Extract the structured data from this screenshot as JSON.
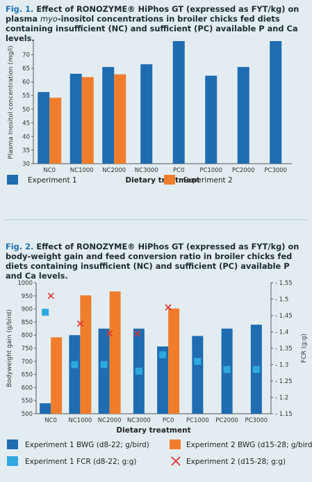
{
  "fig1": {
    "label": "Fig. 1.",
    "title_part1": " Effect of RONOZYME® HiPhos GT (expressed as FYT/kg) on plasma ",
    "title_em": "myo",
    "title_part2": "-inositol concentrations in broiler chicks fed diets containing insufficient (NC) and sufficient (PC) available P and Ca levels."
  },
  "fig2": {
    "label": "Fig. 2.",
    "title": " Effect of RONOZYME® HiPhos GT (expressed as FYT/kg) on body-weight gain and feed conversion ratio in broiler chicks fed diets containing insufficient (NC) and sufficient (PC) available P and Ca levels."
  },
  "colors": {
    "exp1": "#1f6cb1",
    "exp2": "#f07d2c",
    "exp1_fcr": "#2fa8e0",
    "exp2_fcr": "#e0342f",
    "background": "#e3edf1"
  },
  "chart_data": [
    {
      "type": "bar",
      "categories": [
        "NC0",
        "NC1000",
        "NC2000",
        "NC3000",
        "PC0",
        "PC1000",
        "PC2000",
        "PC3000"
      ],
      "series": [
        {
          "name": "Experiment 1",
          "values": [
            56.3,
            63.0,
            65.5,
            66.5,
            75.0,
            62.3,
            65.5,
            75.0
          ]
        },
        {
          "name": "Experiment 2",
          "values": [
            54.2,
            61.8,
            62.8,
            null,
            null,
            null,
            null,
            null
          ]
        }
      ],
      "ylabel": "Plasma Inositol concentration (mg/l)",
      "xlabel": "Dietary treatment",
      "ylim": [
        30,
        75
      ],
      "yticks": [
        30,
        35,
        40,
        45,
        50,
        55,
        60,
        65,
        70
      ],
      "legend": "bottom",
      "grid": false
    },
    {
      "type": "bar",
      "categories": [
        "NC0",
        "NC1000",
        "NC2000",
        "NC3000",
        "PC0",
        "PC1000",
        "PC2000",
        "PC3000"
      ],
      "series": [
        {
          "name": "Experiment 1 BWG (d8-22; g/bird)",
          "values": [
            540,
            800,
            825,
            825,
            757,
            797,
            825,
            840
          ],
          "axis": "left"
        },
        {
          "name": "Experiment 2 BWG (d15-28; g/bird)",
          "values": [
            792,
            952,
            967,
            null,
            902,
            null,
            null,
            null
          ],
          "axis": "left"
        },
        {
          "name": "Experiment 1 FCR (d8-22; g:g)",
          "values": [
            1.46,
            1.3,
            1.3,
            1.28,
            1.33,
            1.31,
            1.285,
            1.285
          ],
          "axis": "right",
          "marker": "square"
        },
        {
          "name": "Experiment 2 (d15-28; g:g)",
          "values": [
            1.51,
            1.425,
            1.395,
            1.395,
            1.475,
            null,
            null,
            null
          ],
          "axis": "right",
          "marker": "x"
        }
      ],
      "ylabel": "Bodyweight gain (g/bird)",
      "y2label": "FCR (g:g)",
      "xlabel": "Dietary treatment",
      "ylim": [
        500,
        1000
      ],
      "yticks": [
        500,
        550,
        600,
        650,
        700,
        750,
        800,
        850,
        900,
        950,
        1000
      ],
      "y2lim": [
        1.15,
        1.55
      ],
      "y2ticks": [
        "1.15",
        "1.2",
        "1.25",
        "1.3",
        "1.35",
        "1.4",
        "1.45",
        "1.5",
        "1.55"
      ],
      "legend": "bottom",
      "grid": false
    }
  ]
}
